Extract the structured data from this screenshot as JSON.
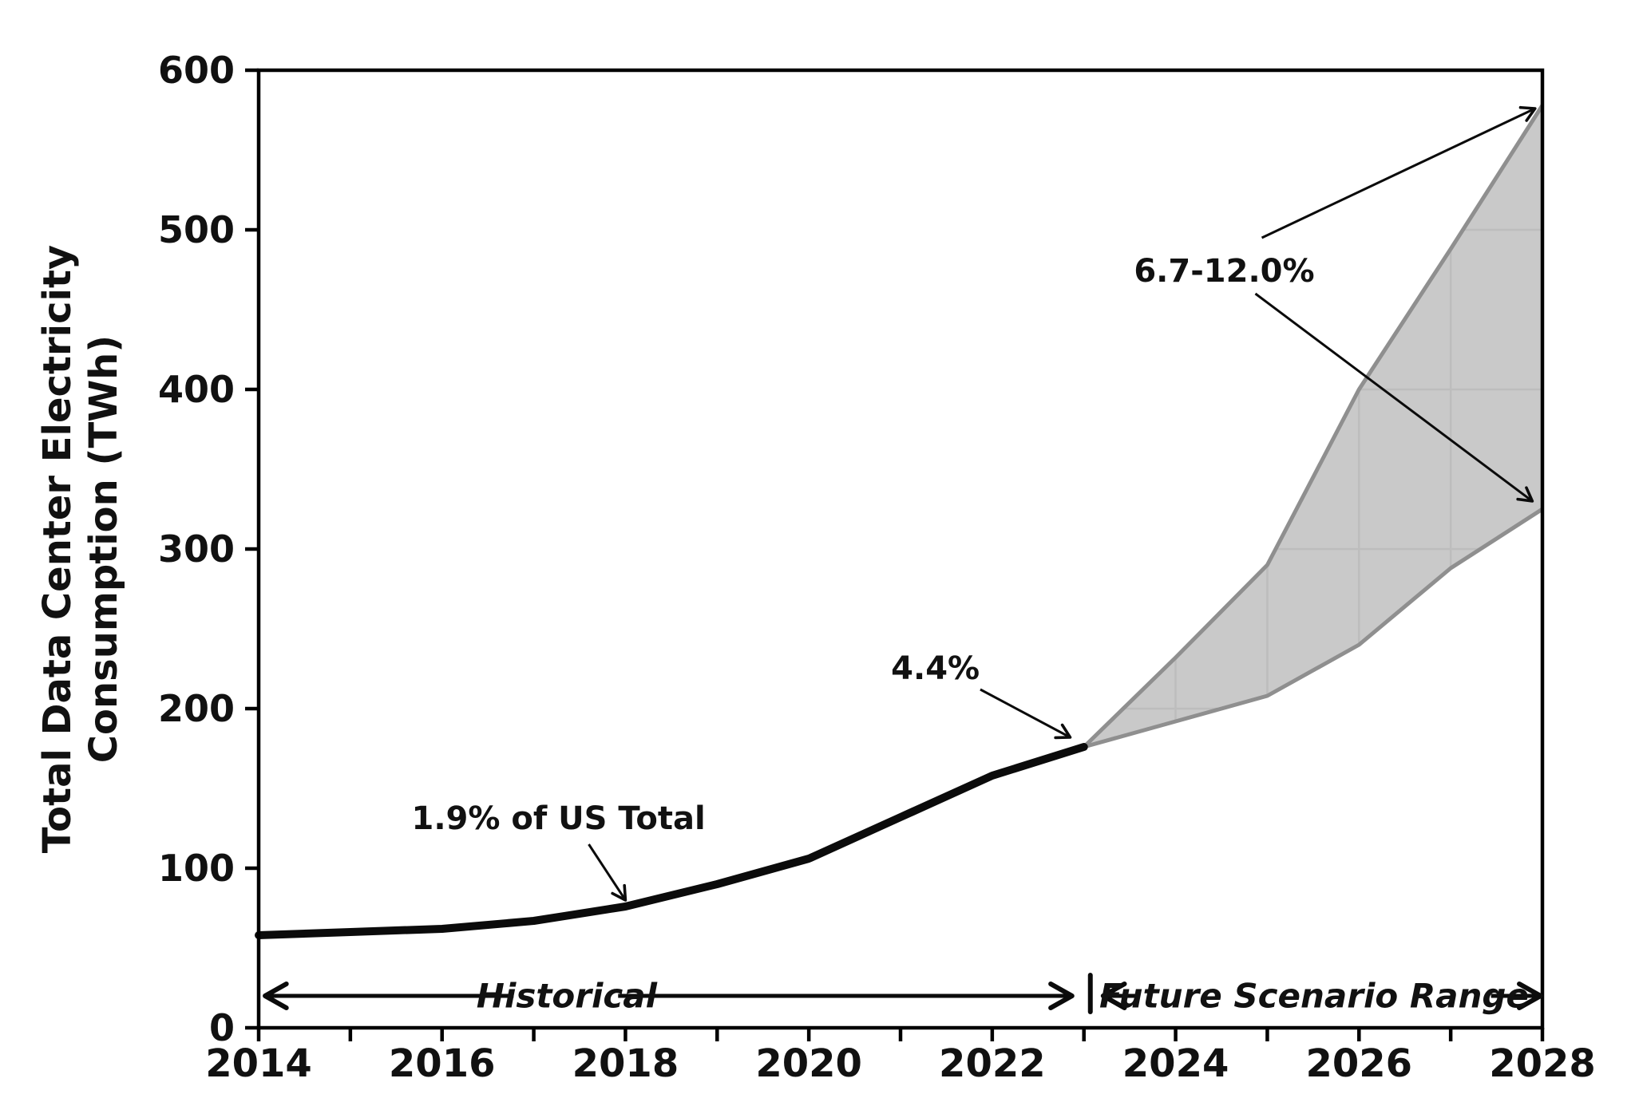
{
  "colors": {
    "background": "#ffffff",
    "historical_line": "#0b0b0b",
    "fan_fill": "#c9c9c9",
    "fan_edge": "#8f8f8f",
    "fan_gridline": "#bdbdbd",
    "axis": "#000000",
    "text": "#111111"
  },
  "chart_data": {
    "type": "line",
    "title": "",
    "xlabel": "",
    "ylabel_lines": [
      "Total Data Center Electricity",
      "Consumption (TWh)"
    ],
    "xlim": [
      2014,
      2028
    ],
    "ylim": [
      0,
      600
    ],
    "grid": "inside-fan-only",
    "legend": "none",
    "x_minor_ticks": [
      2014,
      2015,
      2016,
      2017,
      2018,
      2019,
      2020,
      2021,
      2022,
      2023,
      2024,
      2025,
      2026,
      2027,
      2028
    ],
    "x_tick_labels": [
      "2014",
      "2016",
      "2018",
      "2020",
      "2022",
      "2024",
      "2026",
      "2028"
    ],
    "x_tick_label_years": [
      2014,
      2016,
      2018,
      2020,
      2022,
      2024,
      2026,
      2028
    ],
    "y_ticks": [
      0,
      100,
      200,
      300,
      400,
      500,
      600
    ],
    "y_tick_labels": [
      "0",
      "100",
      "200",
      "300",
      "400",
      "500",
      "600"
    ],
    "fan_gridline_years": [
      2024,
      2025,
      2026,
      2027
    ],
    "fan_gridline_values": [
      100,
      200,
      300,
      400,
      500
    ],
    "series": [
      {
        "name": "historical",
        "x": [
          2014,
          2015,
          2016,
          2017,
          2018,
          2019,
          2020,
          2021,
          2022,
          2023
        ],
        "values": [
          58,
          60,
          62,
          67,
          76,
          90,
          106,
          132,
          158,
          176
        ]
      },
      {
        "name": "scenario_low",
        "x": [
          2023,
          2024,
          2025,
          2026,
          2027,
          2028
        ],
        "values": [
          176,
          192,
          208,
          240,
          288,
          325
        ]
      },
      {
        "name": "scenario_high",
        "x": [
          2023,
          2024,
          2025,
          2026,
          2027,
          2028
        ],
        "values": [
          176,
          232,
          290,
          400,
          488,
          578
        ]
      }
    ],
    "annotations": [
      {
        "id": "share-2018",
        "text": "1.9% of US Total",
        "x": 2017.27,
        "y": 131,
        "font_size": 40,
        "arrows": [
          {
            "x1": 2017.6,
            "y1": 115,
            "x2": 2018.0,
            "y2": 80
          }
        ]
      },
      {
        "id": "share-2023",
        "text": "4.4%",
        "x": 2021.38,
        "y": 225,
        "font_size": 40,
        "arrows": [
          {
            "x1": 2021.87,
            "y1": 212,
            "x2": 2022.85,
            "y2": 182
          }
        ]
      },
      {
        "id": "share-2028",
        "text": "6.7-12.0%",
        "x": 2024.53,
        "y": 474,
        "font_size": 40,
        "arrows": [
          {
            "x1": 2024.94,
            "y1": 495,
            "x2": 2027.92,
            "y2": 576
          },
          {
            "x1": 2024.87,
            "y1": 460,
            "x2": 2027.89,
            "y2": 330
          }
        ]
      }
    ],
    "span_arrows": [
      {
        "id": "historical-span",
        "text": "Historical",
        "text_x": 2017.36,
        "text_y": 20,
        "y": 20,
        "x_start": 2014.07,
        "gap_start": 2016.78,
        "gap_end": 2017.92,
        "x_end": 2022.87,
        "font_size": 42
      },
      {
        "id": "future-span",
        "text": "Future Scenario Range",
        "text_x": 2025.51,
        "text_y": 20,
        "y": 20,
        "x_start": 2023.21,
        "gap_start": 2023.58,
        "gap_end": 2027.44,
        "x_end": 2027.98,
        "font_size": 42
      }
    ],
    "separator": {
      "x": 2023.07,
      "y_from": 10,
      "y_to": 33
    }
  }
}
